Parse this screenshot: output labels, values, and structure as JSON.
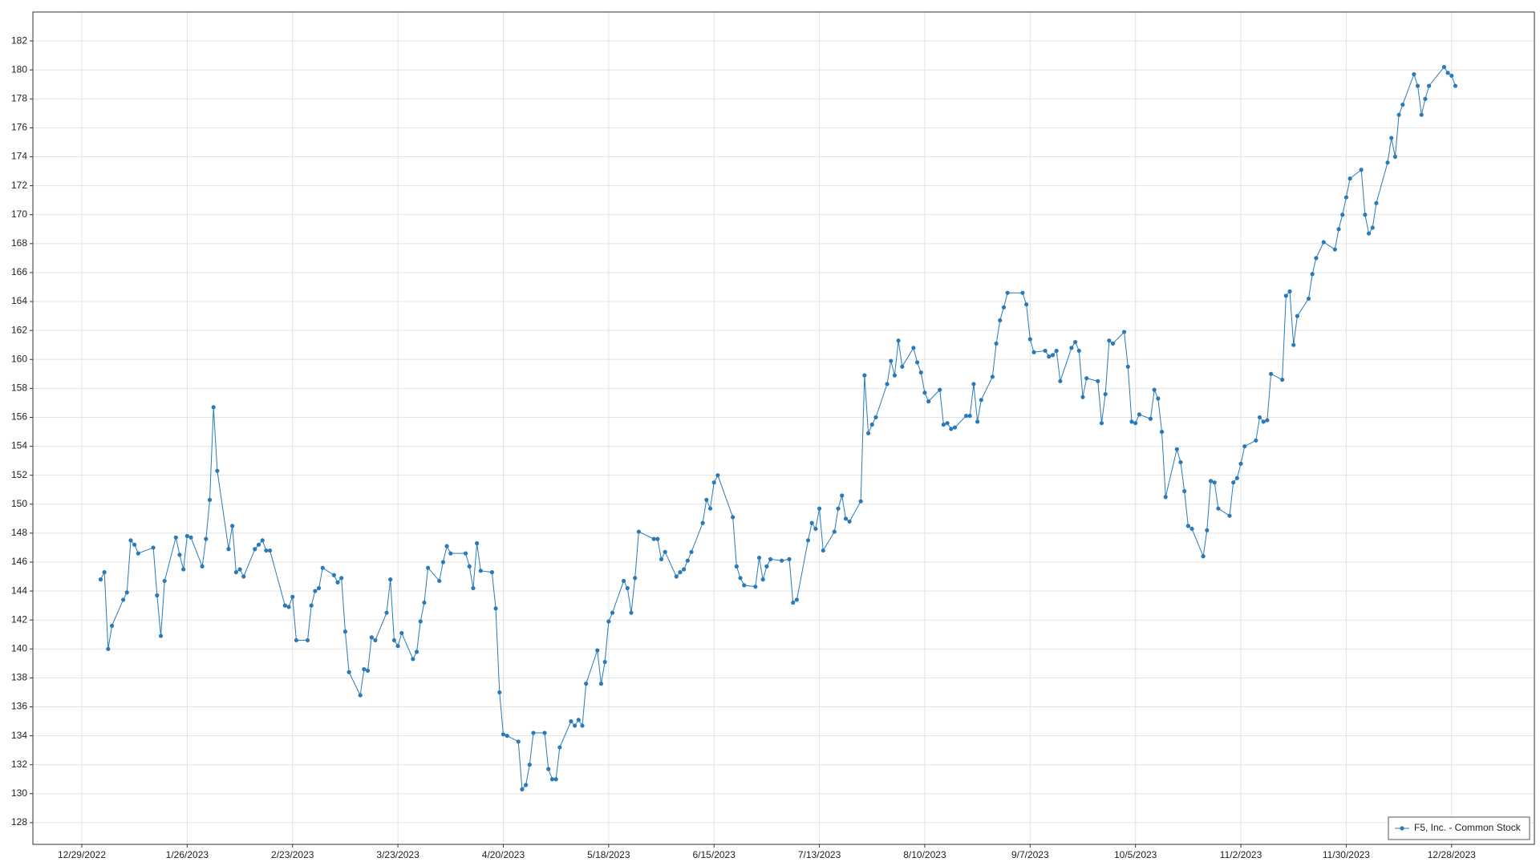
{
  "chart_data": {
    "type": "line",
    "x": [
      "1/3/2023",
      "1/4/2023",
      "1/5/2023",
      "1/6/2023",
      "1/9/2023",
      "1/10/2023",
      "1/11/2023",
      "1/12/2023",
      "1/13/2023",
      "1/17/2023",
      "1/18/2023",
      "1/19/2023",
      "1/20/2023",
      "1/23/2023",
      "1/24/2023",
      "1/25/2023",
      "1/26/2023",
      "1/27/2023",
      "1/30/2023",
      "1/31/2023",
      "2/1/2023",
      "2/2/2023",
      "2/3/2023",
      "2/6/2023",
      "2/7/2023",
      "2/8/2023",
      "2/9/2023",
      "2/10/2023",
      "2/13/2023",
      "2/14/2023",
      "2/15/2023",
      "2/16/2023",
      "2/17/2023",
      "2/21/2023",
      "2/22/2023",
      "2/23/2023",
      "2/24/2023",
      "2/27/2023",
      "2/28/2023",
      "3/1/2023",
      "3/2/2023",
      "3/3/2023",
      "3/6/2023",
      "3/7/2023",
      "3/8/2023",
      "3/9/2023",
      "3/10/2023",
      "3/13/2023",
      "3/14/2023",
      "3/15/2023",
      "3/16/2023",
      "3/17/2023",
      "3/20/2023",
      "3/21/2023",
      "3/22/2023",
      "3/23/2023",
      "3/24/2023",
      "3/27/2023",
      "3/28/2023",
      "3/29/2023",
      "3/30/2023",
      "3/31/2023",
      "4/3/2023",
      "4/4/2023",
      "4/5/2023",
      "4/6/2023",
      "4/10/2023",
      "4/11/2023",
      "4/12/2023",
      "4/13/2023",
      "4/14/2023",
      "4/17/2023",
      "4/18/2023",
      "4/19/2023",
      "4/20/2023",
      "4/21/2023",
      "4/24/2023",
      "4/25/2023",
      "4/26/2023",
      "4/27/2023",
      "4/28/2023",
      "5/1/2023",
      "5/2/2023",
      "5/3/2023",
      "5/4/2023",
      "5/5/2023",
      "5/8/2023",
      "5/9/2023",
      "5/10/2023",
      "5/11/2023",
      "5/12/2023",
      "5/15/2023",
      "5/16/2023",
      "5/17/2023",
      "5/18/2023",
      "5/19/2023",
      "5/22/2023",
      "5/23/2023",
      "5/24/2023",
      "5/25/2023",
      "5/26/2023",
      "5/30/2023",
      "5/31/2023",
      "6/1/2023",
      "6/2/2023",
      "6/5/2023",
      "6/6/2023",
      "6/7/2023",
      "6/8/2023",
      "6/9/2023",
      "6/12/2023",
      "6/13/2023",
      "6/14/2023",
      "6/15/2023",
      "6/16/2023",
      "6/20/2023",
      "6/21/2023",
      "6/22/2023",
      "6/23/2023",
      "6/26/2023",
      "6/27/2023",
      "6/28/2023",
      "6/29/2023",
      "6/30/2023",
      "7/3/2023",
      "7/5/2023",
      "7/6/2023",
      "7/7/2023",
      "7/10/2023",
      "7/11/2023",
      "7/12/2023",
      "7/13/2023",
      "7/14/2023",
      "7/17/2023",
      "7/18/2023",
      "7/19/2023",
      "7/20/2023",
      "7/21/2023",
      "7/24/2023",
      "7/25/2023",
      "7/26/2023",
      "7/27/2023",
      "7/28/2023",
      "7/31/2023",
      "8/1/2023",
      "8/2/2023",
      "8/3/2023",
      "8/4/2023",
      "8/7/2023",
      "8/8/2023",
      "8/9/2023",
      "8/10/2023",
      "8/11/2023",
      "8/14/2023",
      "8/15/2023",
      "8/16/2023",
      "8/17/2023",
      "8/18/2023",
      "8/21/2023",
      "8/22/2023",
      "8/23/2023",
      "8/24/2023",
      "8/25/2023",
      "8/28/2023",
      "8/29/2023",
      "8/30/2023",
      "8/31/2023",
      "9/1/2023",
      "9/5/2023",
      "9/6/2023",
      "9/7/2023",
      "9/8/2023",
      "9/11/2023",
      "9/12/2023",
      "9/13/2023",
      "9/14/2023",
      "9/15/2023",
      "9/18/2023",
      "9/19/2023",
      "9/20/2023",
      "9/21/2023",
      "9/22/2023",
      "9/25/2023",
      "9/26/2023",
      "9/27/2023",
      "9/28/2023",
      "9/29/2023",
      "10/2/2023",
      "10/3/2023",
      "10/4/2023",
      "10/5/2023",
      "10/6/2023",
      "10/9/2023",
      "10/10/2023",
      "10/11/2023",
      "10/12/2023",
      "10/13/2023",
      "10/16/2023",
      "10/17/2023",
      "10/18/2023",
      "10/19/2023",
      "10/20/2023",
      "10/23/2023",
      "10/24/2023",
      "10/25/2023",
      "10/26/2023",
      "10/27/2023",
      "10/30/2023",
      "10/31/2023",
      "11/1/2023",
      "11/2/2023",
      "11/3/2023",
      "11/6/2023",
      "11/7/2023",
      "11/8/2023",
      "11/9/2023",
      "11/10/2023",
      "11/13/2023",
      "11/14/2023",
      "11/15/2023",
      "11/16/2023",
      "11/17/2023",
      "11/20/2023",
      "11/21/2023",
      "11/22/2023",
      "11/24/2023",
      "11/27/2023",
      "11/28/2023",
      "11/29/2023",
      "11/30/2023",
      "12/1/2023",
      "12/4/2023",
      "12/5/2023",
      "12/6/2023",
      "12/7/2023",
      "12/8/2023",
      "12/11/2023",
      "12/12/2023",
      "12/13/2023",
      "12/14/2023",
      "12/15/2023",
      "12/18/2023",
      "12/19/2023",
      "12/20/2023",
      "12/21/2023",
      "12/22/2023",
      "12/26/2023",
      "12/27/2023",
      "12/28/2023",
      "12/29/2023"
    ],
    "series": [
      {
        "name": "F5, Inc. - Common Stock",
        "color": "#2a7ab8",
        "values": [
          144.8,
          145.3,
          140.0,
          141.6,
          143.4,
          143.9,
          147.5,
          147.2,
          146.6,
          147.0,
          143.7,
          140.9,
          144.7,
          147.7,
          146.5,
          145.5,
          147.8,
          147.7,
          145.7,
          147.6,
          150.3,
          156.7,
          152.3,
          146.9,
          148.5,
          145.3,
          145.5,
          145.0,
          146.9,
          147.2,
          147.5,
          146.8,
          146.8,
          143.0,
          142.9,
          143.6,
          140.6,
          140.6,
          143.0,
          144.0,
          144.2,
          145.6,
          145.1,
          144.6,
          144.9,
          141.2,
          138.4,
          136.8,
          138.6,
          138.5,
          140.8,
          140.6,
          142.5,
          144.8,
          140.6,
          140.2,
          141.1,
          139.3,
          139.8,
          141.9,
          143.2,
          145.6,
          144.7,
          146.0,
          147.1,
          146.6,
          146.6,
          145.7,
          144.2,
          147.3,
          145.4,
          145.3,
          142.8,
          137.0,
          134.1,
          134.0,
          133.6,
          130.3,
          130.6,
          132.0,
          134.2,
          134.2,
          131.7,
          131.0,
          131.0,
          133.2,
          135.0,
          134.7,
          135.1,
          134.7,
          137.6,
          139.9,
          137.6,
          139.1,
          141.9,
          142.5,
          144.7,
          144.2,
          142.5,
          144.9,
          148.1,
          147.6,
          147.6,
          146.2,
          146.7,
          145.0,
          145.3,
          145.5,
          146.1,
          146.7,
          148.7,
          150.3,
          149.7,
          151.5,
          152.0,
          149.1,
          145.7,
          144.9,
          144.4,
          144.3,
          146.3,
          144.8,
          145.7,
          146.2,
          146.1,
          146.2,
          143.2,
          143.4,
          147.5,
          148.7,
          148.3,
          149.7,
          146.8,
          148.1,
          149.7,
          150.6,
          149.0,
          148.8,
          150.2,
          158.9,
          154.9,
          155.5,
          156.0,
          158.3,
          159.9,
          158.9,
          161.3,
          159.5,
          160.8,
          159.8,
          159.1,
          157.7,
          157.1,
          157.9,
          155.5,
          155.6,
          155.2,
          155.3,
          156.1,
          156.1,
          158.3,
          155.7,
          157.2,
          158.8,
          161.1,
          162.7,
          163.6,
          164.6,
          164.6,
          163.8,
          161.4,
          160.5,
          160.6,
          160.2,
          160.3,
          160.6,
          158.5,
          160.8,
          161.2,
          160.6,
          157.4,
          158.7,
          158.5,
          155.6,
          157.6,
          161.3,
          161.1,
          161.9,
          159.5,
          155.7,
          155.6,
          156.2,
          155.9,
          157.9,
          157.3,
          155.0,
          150.5,
          153.8,
          152.9,
          150.9,
          148.5,
          148.3,
          146.4,
          148.2,
          151.6,
          151.5,
          149.7,
          149.2,
          151.5,
          151.8,
          152.8,
          154.0,
          154.4,
          156.0,
          155.7,
          155.8,
          159.0,
          158.6,
          164.4,
          164.7,
          161.0,
          163.0,
          164.2,
          165.9,
          167.0,
          168.1,
          167.6,
          169.0,
          170.0,
          171.2,
          172.5,
          173.1,
          170.0,
          168.7,
          169.1,
          170.8,
          173.6,
          175.3,
          174.0,
          176.9,
          177.6,
          179.7,
          178.9,
          176.9,
          178.0,
          178.9,
          180.2,
          179.8,
          179.6,
          178.9
        ]
      }
    ],
    "xlim": [
      "12/16/2022",
      "1/19/2024"
    ],
    "xticks": [
      "12/29/2022",
      "1/26/2023",
      "2/23/2023",
      "3/23/2023",
      "4/20/2023",
      "5/18/2023",
      "6/15/2023",
      "7/13/2023",
      "8/10/2023",
      "9/7/2023",
      "10/5/2023",
      "11/2/2023",
      "11/30/2023",
      "12/28/2023"
    ],
    "ylim": [
      126.5,
      184
    ],
    "yticks": [
      128,
      130,
      132,
      134,
      136,
      138,
      140,
      142,
      144,
      146,
      148,
      150,
      152,
      154,
      156,
      158,
      160,
      162,
      164,
      166,
      168,
      170,
      172,
      174,
      176,
      178,
      180,
      182
    ],
    "grid": true,
    "legend": "lower right"
  }
}
